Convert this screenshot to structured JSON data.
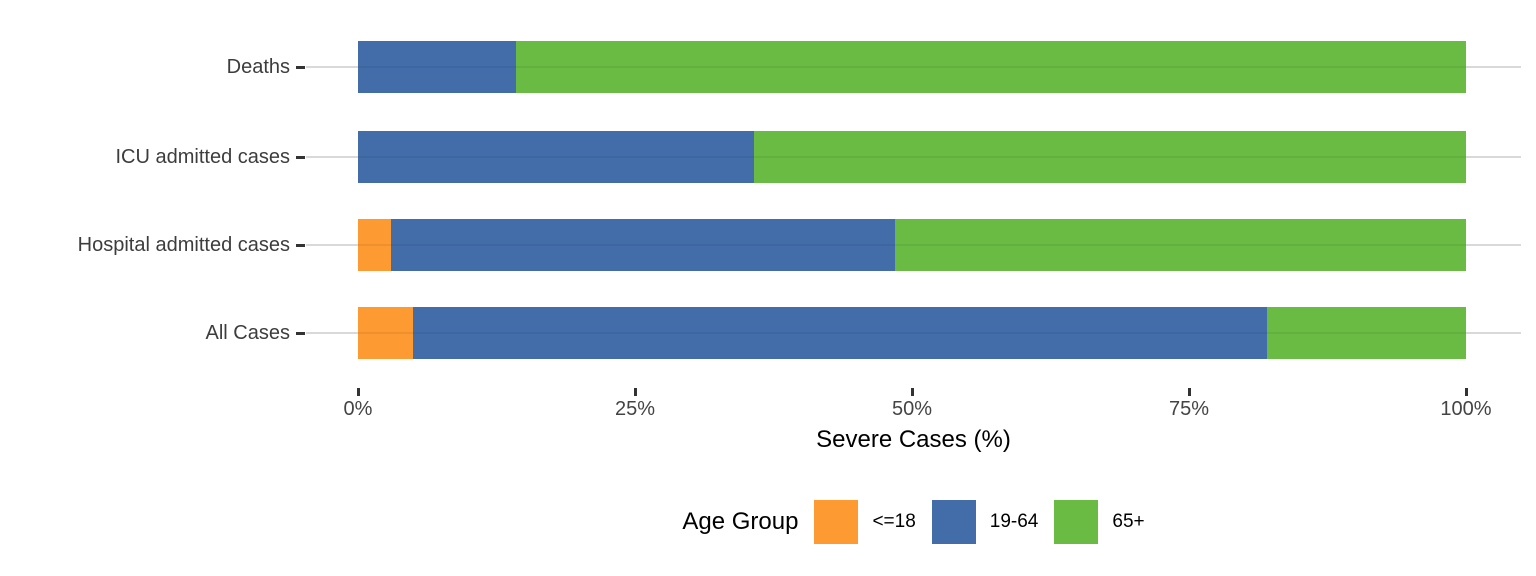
{
  "chart_data": {
    "type": "bar",
    "orientation": "horizontal",
    "stacked": true,
    "stack_total": 100,
    "title": "",
    "xlabel": "Severe Cases (%)",
    "xlim": [
      0,
      100
    ],
    "x_ticks": [
      {
        "value": 0,
        "label": "0%"
      },
      {
        "value": 25,
        "label": "25%"
      },
      {
        "value": 50,
        "label": "50%"
      },
      {
        "value": 75,
        "label": "75%"
      },
      {
        "value": 100,
        "label": "100%"
      }
    ],
    "categories": [
      "Deaths",
      "ICU admitted cases",
      "Hospital admitted cases",
      "All Cases"
    ],
    "series": [
      {
        "name": "<=18",
        "color": "#FD9A32",
        "values": [
          0,
          0,
          3,
          5
        ]
      },
      {
        "name": "19-64",
        "color": "#426DA9",
        "values": [
          14.3,
          35.7,
          45.5,
          77
        ]
      },
      {
        "name": "65+",
        "color": "#6ABB44",
        "values": [
          85.7,
          64.3,
          51.5,
          18
        ]
      }
    ],
    "legend": {
      "title": "Age Group",
      "position": "bottom"
    },
    "grid": "horizontal-only"
  },
  "styles": {
    "background": "#FFFFFF",
    "gridline_color": "#D9D9D9",
    "tick_color": "#333333",
    "axis_text_color": "#3D3D3D",
    "axis_title_color": "#000000"
  }
}
